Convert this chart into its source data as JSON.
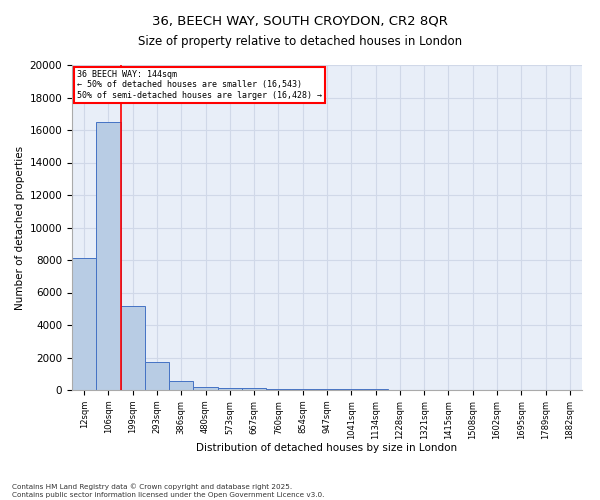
{
  "title_line1": "36, BEECH WAY, SOUTH CROYDON, CR2 8QR",
  "title_line2": "Size of property relative to detached houses in London",
  "xlabel": "Distribution of detached houses by size in London",
  "ylabel": "Number of detached properties",
  "categories": [
    "12sqm",
    "106sqm",
    "199sqm",
    "293sqm",
    "386sqm",
    "480sqm",
    "573sqm",
    "667sqm",
    "760sqm",
    "854sqm",
    "947sqm",
    "1041sqm",
    "1134sqm",
    "1228sqm",
    "1321sqm",
    "1415sqm",
    "1508sqm",
    "1602sqm",
    "1695sqm",
    "1789sqm",
    "1882sqm"
  ],
  "values": [
    8100,
    16500,
    5200,
    1700,
    550,
    200,
    150,
    100,
    70,
    60,
    50,
    40,
    35,
    25,
    20,
    15,
    10,
    8,
    5,
    3,
    2
  ],
  "bar_color": "#b8cce4",
  "bar_edge_color": "#4472c4",
  "property_label": "36 BEECH WAY: 144sqm",
  "arrow_left_text": "← 50% of detached houses are smaller (16,543)",
  "arrow_right_text": "50% of semi-detached houses are larger (16,428) →",
  "vline_x_index": 1.5,
  "footer_line1": "Contains HM Land Registry data © Crown copyright and database right 2025.",
  "footer_line2": "Contains public sector information licensed under the Open Government Licence v3.0.",
  "ylim": [
    0,
    20000
  ],
  "yticks": [
    0,
    2000,
    4000,
    6000,
    8000,
    10000,
    12000,
    14000,
    16000,
    18000,
    20000
  ],
  "grid_color": "#d0d8e8",
  "bg_color": "#e8eef8"
}
